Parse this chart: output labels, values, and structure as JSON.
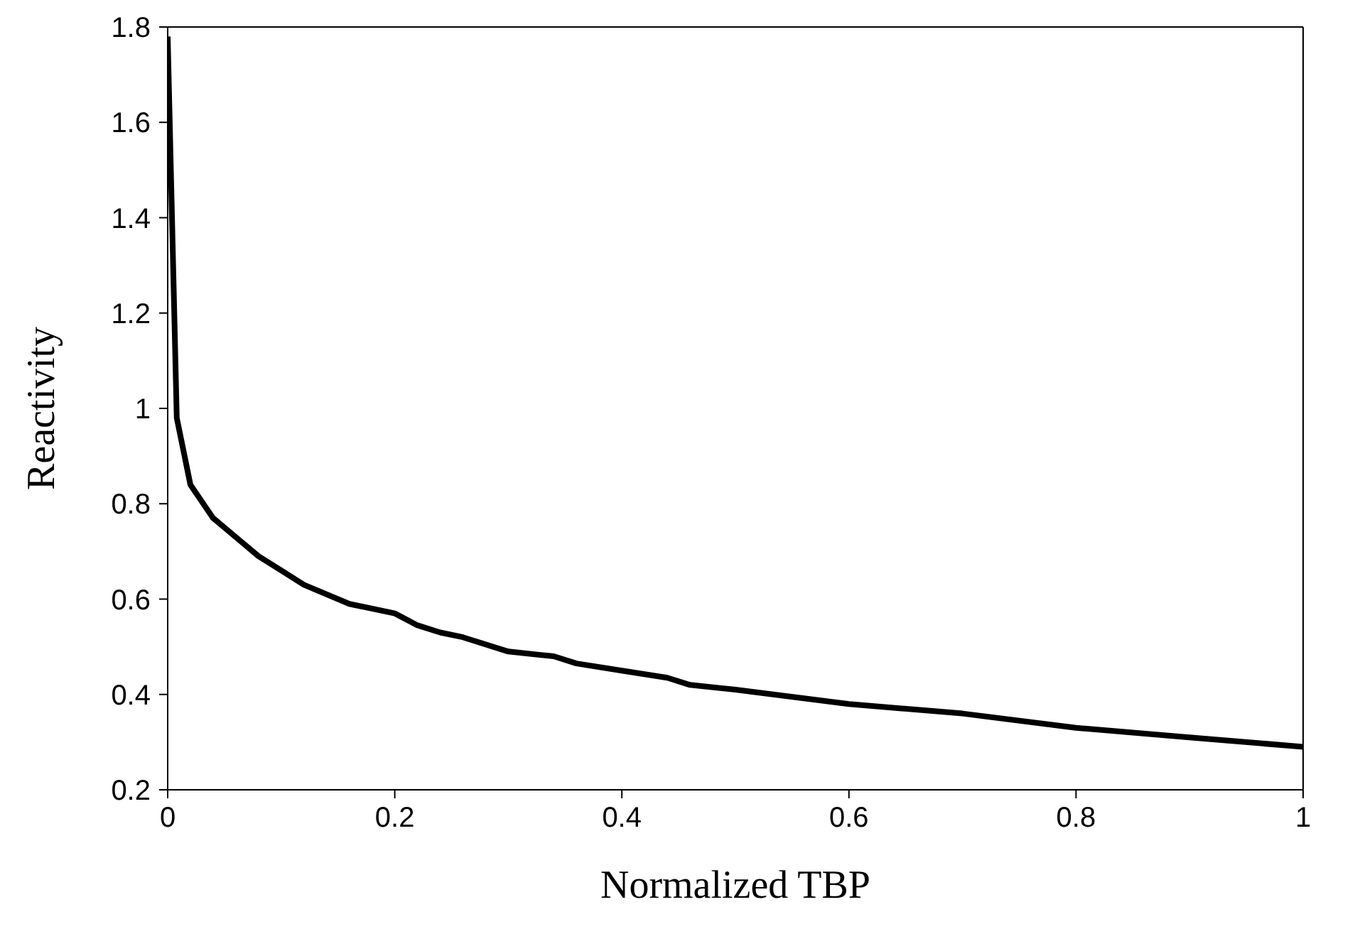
{
  "chart_data": {
    "type": "line",
    "xlabel": "Normalized TBP",
    "ylabel": "Reactivity",
    "x": [
      0,
      0.008,
      0.02,
      0.04,
      0.06,
      0.08,
      0.1,
      0.12,
      0.16,
      0.2,
      0.22,
      0.24,
      0.26,
      0.3,
      0.34,
      0.36,
      0.4,
      0.44,
      0.46,
      0.5,
      0.6,
      0.7,
      0.8,
      0.9,
      1.0
    ],
    "series": [
      {
        "color": "#000000",
        "values": [
          1.78,
          0.98,
          0.84,
          0.77,
          0.73,
          0.69,
          0.66,
          0.63,
          0.59,
          0.57,
          0.545,
          0.53,
          0.52,
          0.49,
          0.48,
          0.465,
          0.45,
          0.435,
          0.42,
          0.41,
          0.38,
          0.36,
          0.33,
          0.31,
          0.29
        ]
      }
    ],
    "xlim": [
      0,
      1
    ],
    "xticks": [
      0,
      0.2,
      0.4,
      0.6,
      0.8,
      1
    ],
    "ylim": [
      0.2,
      1.8
    ],
    "yticks": [
      0.2,
      0.4,
      0.6,
      0.8,
      1,
      1.2,
      1.4,
      1.6,
      1.8
    ],
    "grid": false,
    "legend": false,
    "marker": "none",
    "line_style": "solid"
  }
}
